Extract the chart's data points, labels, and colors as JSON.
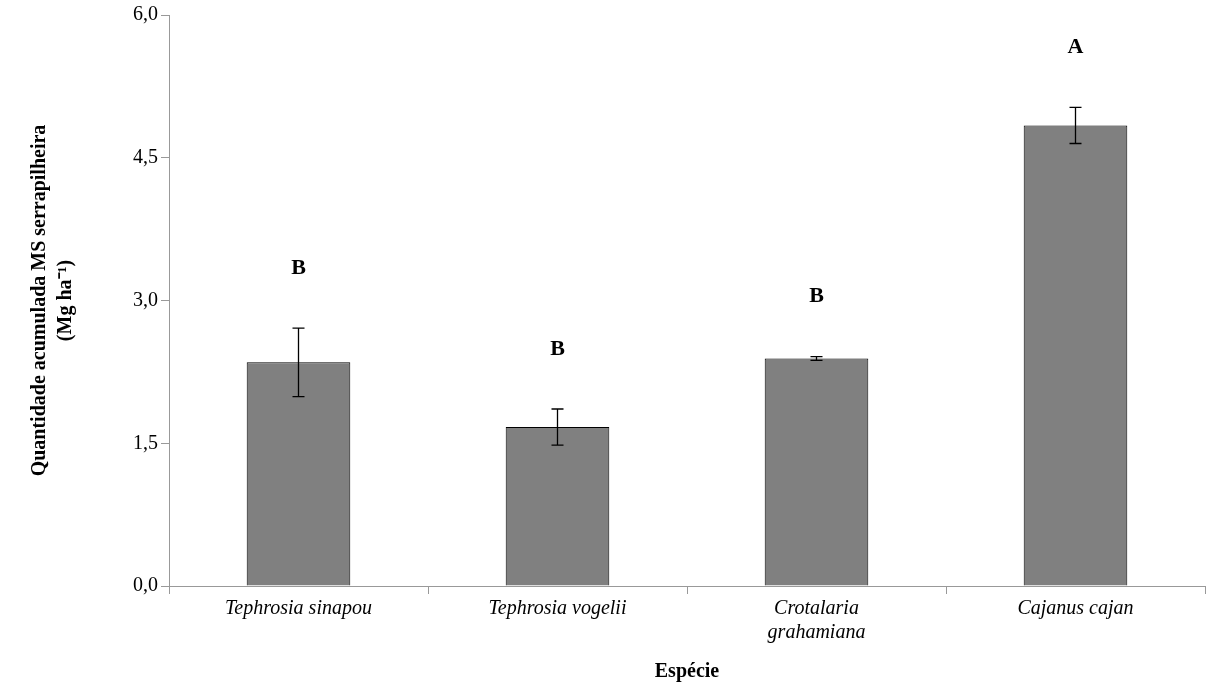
{
  "chart_data": {
    "type": "bar",
    "xlabel": "Espécie",
    "ylabel": "Quantidade acumulada MS serrapilheira (Mg ha⁻¹)",
    "categories": [
      "Tephrosia sinapou",
      "Tephrosia vogelii",
      "Crotalaria grahamiana",
      "Cajanus cajan"
    ],
    "values": [
      2.35,
      1.67,
      2.39,
      4.84
    ],
    "errors": [
      0.36,
      0.19,
      0.02,
      0.19
    ],
    "color": "#808080",
    "ylim": [
      0,
      6
    ],
    "yticks": [
      {
        "value": 0,
        "label": "0,0"
      },
      {
        "value": 1.5,
        "label": "1,5"
      },
      {
        "value": 3,
        "label": "3,0"
      },
      {
        "value": 4.5,
        "label": "4,5"
      },
      {
        "value": 6,
        "label": "6,0"
      }
    ],
    "grid": false,
    "legend": false,
    "annotations": [
      "B",
      "B",
      "B",
      "A"
    ]
  }
}
